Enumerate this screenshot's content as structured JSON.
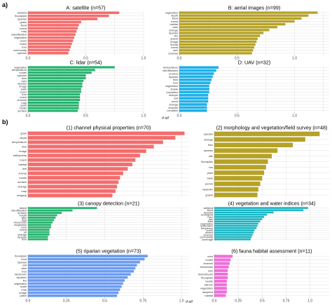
{
  "figure": {
    "section_a": "a)",
    "section_b": "b)",
    "xlabel": "tf-idf"
  },
  "chart_data": [
    {
      "type": "bar",
      "orientation": "horizontal",
      "title": "A: satellite (n=57)",
      "color": "#f46d6d",
      "categories": [
        "wetland",
        "floodplain",
        "riparian",
        "grass",
        "flood",
        "forest",
        "map",
        "classification",
        "vegetation",
        "cover",
        "reach",
        "tree",
        "community",
        "species"
      ],
      "values": [
        0.79,
        0.7,
        0.6,
        0.46,
        0.44,
        0.43,
        0.42,
        0.41,
        0.4,
        0.39,
        0.38,
        0.37,
        0.36,
        0.35
      ],
      "xlim": [
        0,
        1.0
      ],
      "xticks": [
        0,
        0.5,
        1.0
      ]
    },
    {
      "type": "bar",
      "orientation": "horizontal",
      "title": "B: aerial images (n=99)",
      "color": "#b5a227",
      "categories": [
        "vegetation",
        "depth",
        "flood",
        "forest",
        "habitat",
        "dam",
        "change",
        "riparian",
        "fire",
        "gravel",
        "image",
        "floodp",
        "forest",
        "size",
        "channel"
      ],
      "values": [
        1.2,
        1.12,
        1.06,
        1.0,
        0.92,
        0.85,
        0.78,
        0.73,
        0.7,
        0.68,
        0.67,
        0.66,
        0.65,
        0.64,
        0.63
      ],
      "xlim": [
        0,
        1.3
      ],
      "xticks": [
        0,
        0.5,
        1.0
      ]
    },
    {
      "type": "bar",
      "orientation": "horizontal",
      "title": "C: lidar (n=54)",
      "color": "#26b36e",
      "categories": [
        "vegetation",
        "temperature",
        "model",
        "species",
        "flow",
        "river",
        "riparian",
        "image",
        "bank",
        "cover",
        "tree",
        "reach",
        "channel",
        "map",
        "grain",
        "model",
        "surface"
      ],
      "values": [
        0.75,
        0.58,
        0.55,
        0.5,
        0.5,
        0.48,
        0.47,
        0.47,
        0.46,
        0.46,
        0.45,
        0.45,
        0.45,
        0.44,
        0.44,
        0.44,
        0.43
      ],
      "xlim": [
        0,
        1.0
      ],
      "xticks": [
        0,
        0.5,
        1.0
      ]
    },
    {
      "type": "bar",
      "orientation": "horizontal",
      "title": "D: UAV (n=32)",
      "color": "#1fb0e8",
      "categories": [
        "temperature",
        "identification",
        "erosion",
        "riparian",
        "flow",
        "tree",
        "vegetation",
        "shade",
        "insolation",
        "biotope",
        "soil",
        "wood",
        "change",
        "channel",
        "condition"
      ],
      "values": [
        0.34,
        0.32,
        0.3,
        0.29,
        0.28,
        0.27,
        0.26,
        0.26,
        0.26,
        0.25,
        0.25,
        0.25,
        0.24,
        0.24,
        0.24
      ],
      "xlim": [
        0,
        1.3
      ],
      "xticks": [
        0,
        0.5,
        1.0
      ]
    },
    {
      "type": "bar",
      "orientation": "horizontal",
      "title": "(1) channel physical properties (n=70)",
      "color": "#f46d6d",
      "categories": [
        "grain",
        "depth",
        "temperature",
        "size",
        "image",
        "bathymetry",
        "reach",
        "habitat",
        "line",
        "survey",
        "model",
        "surface",
        "change",
        "map",
        "imagery"
      ],
      "values": [
        1.02,
        0.96,
        0.88,
        0.82,
        0.77,
        0.73,
        0.7,
        0.68,
        0.65,
        0.62,
        0.6,
        0.59,
        0.58,
        0.57,
        0.55
      ],
      "xlim": [
        0,
        1.05
      ],
      "xticks": []
    },
    {
      "type": "bar",
      "orientation": "horizontal",
      "title": "(2) morphology and vegetation/field survey (n=48)",
      "color": "#b5a227",
      "categories": [
        "species",
        "change",
        "flow",
        "riparian",
        "site",
        "floodplain",
        "bar",
        "plant",
        "bank",
        "period",
        "meander",
        "gravel"
      ],
      "values": [
        1.1,
        0.95,
        0.82,
        0.66,
        0.6,
        0.56,
        0.54,
        0.52,
        0.5,
        0.48,
        0.46,
        0.45
      ],
      "xlim": [
        0,
        1.2
      ],
      "xticks": []
    },
    {
      "type": "bar",
      "orientation": "horizontal",
      "title": "(3) canopy detection (n=21)",
      "color": "#26b36e",
      "categories": [
        "island",
        "identification",
        "erosion",
        "height",
        "type",
        "dual",
        "biocenosis",
        "roughness",
        "zone",
        "forest",
        "air",
        "change",
        "riparian",
        "flow"
      ],
      "values": [
        0.45,
        0.29,
        0.22,
        0.19,
        0.18,
        0.17,
        0.16,
        0.15,
        0.15,
        0.14,
        0.14,
        0.14,
        0.13,
        0.13
      ],
      "xlim": [
        0,
        1.05
      ],
      "xticks": []
    },
    {
      "type": "bar",
      "orientation": "horizontal",
      "title": "(4) vegetation and water indices (n=34)",
      "color": "#1ab5c3",
      "categories": [
        "wetland",
        "flood",
        "riparian",
        "ecological",
        "river",
        "uav",
        "lidar",
        "vegetation",
        "restoration",
        "frequency",
        "cover",
        "desert",
        "channel",
        "community",
        "coverage"
      ],
      "values": [
        0.98,
        0.93,
        0.62,
        0.55,
        0.52,
        0.5,
        0.48,
        0.46,
        0.45,
        0.44,
        0.42,
        0.41,
        0.4,
        0.39,
        0.38
      ],
      "xlim": [
        0,
        1.2
      ],
      "xticks": []
    },
    {
      "type": "bar",
      "orientation": "horizontal",
      "title": "(5) riparian vegetation (n=73)",
      "color": "#6a9bf0",
      "categories": [
        "floodplain",
        "food",
        "riparian",
        "soil",
        "dam",
        "tree",
        "landcover",
        "dynamic",
        "fire",
        "vegetation",
        "scale",
        "map",
        "image",
        "patch"
      ],
      "values": [
        0.78,
        0.76,
        0.73,
        0.71,
        0.7,
        0.69,
        0.67,
        0.65,
        0.63,
        0.62,
        0.61,
        0.6,
        0.59,
        0.58
      ],
      "xlim": [
        0,
        1.05
      ],
      "xticks": [
        0,
        0.25,
        0.5,
        0.75,
        1.0
      ]
    },
    {
      "type": "bar",
      "orientation": "horizontal",
      "title": "(6) fauna habitat assessment (n=11)",
      "color": "#f06ed9",
      "categories": [
        "reed",
        "model",
        "channel",
        "biocenosis",
        "size",
        "downstream",
        "floodplain",
        "beetle",
        "salmon",
        "vegetation",
        "lampetra",
        "habitat"
      ],
      "values": [
        0.19,
        0.17,
        0.16,
        0.15,
        0.14,
        0.14,
        0.14,
        0.13,
        0.13,
        0.13,
        0.13,
        0.12
      ],
      "xlim": [
        0,
        1.2
      ],
      "xticks": [
        0,
        0.25,
        0.5,
        0.75,
        1.0
      ]
    }
  ]
}
